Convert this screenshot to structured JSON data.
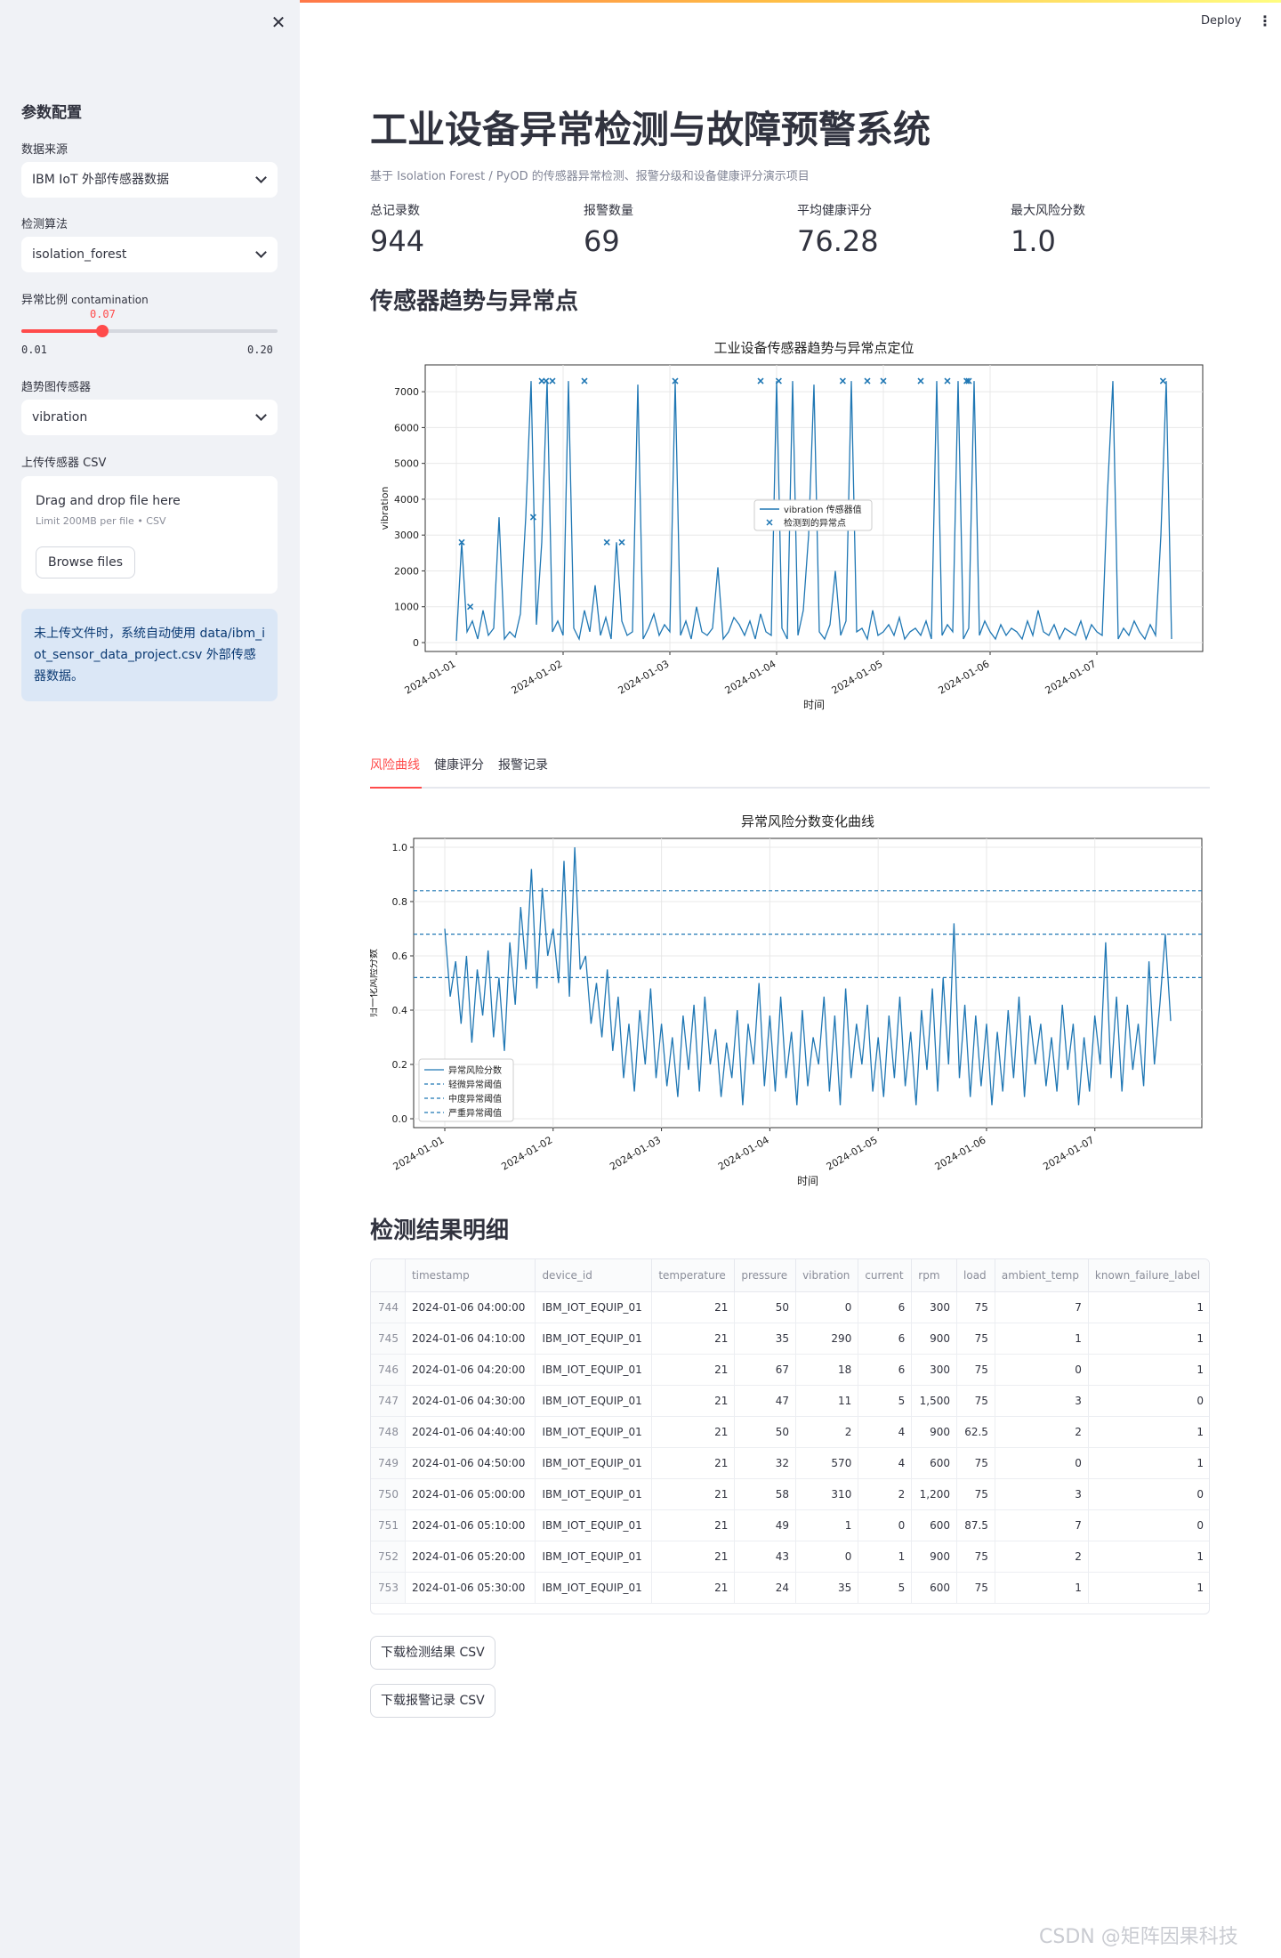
{
  "app": {
    "deploy_label": "Deploy"
  },
  "sidebar": {
    "title": "参数配置",
    "data_source": {
      "label": "数据来源",
      "value": "IBM IoT 外部传感器数据"
    },
    "algorithm": {
      "label": "检测算法",
      "value": "isolation_forest"
    },
    "contamination": {
      "label": "异常比例",
      "label_suffix": "contamination",
      "value": 0.07,
      "value_text": "0.07",
      "min": "0.01",
      "max": "0.20"
    },
    "trend_sensor": {
      "label": "趋势图传感器",
      "value": "vibration"
    },
    "upload": {
      "label": "上传传感器 CSV",
      "drop_text": "Drag and drop file here",
      "limit_text": "Limit 200MB per file • CSV",
      "browse_label": "Browse files"
    },
    "info": "未上传文件时，系统自动使用 data/ibm_iot_sensor_data_project.csv 外部传感器数据。"
  },
  "header": {
    "title": "工业设备异常检测与故障预警系统",
    "subtitle": "基于 Isolation Forest / PyOD 的传感器异常检测、报警分级和设备健康评分演示项目"
  },
  "metrics": [
    {
      "label": "总记录数",
      "value": "944"
    },
    {
      "label": "报警数量",
      "value": "69"
    },
    {
      "label": "平均健康评分",
      "value": "76.28"
    },
    {
      "label": "最大风险分数",
      "value": "1.0"
    }
  ],
  "sections": {
    "trend": "传感器趋势与异常点",
    "details": "检测结果明细"
  },
  "tabs": [
    {
      "label": "风险曲线",
      "active": true
    },
    {
      "label": "健康评分",
      "active": false
    },
    {
      "label": "报警记录",
      "active": false
    }
  ],
  "chart_data": [
    {
      "type": "line",
      "title": "工业设备传感器趋势与异常点定位",
      "xlabel": "时间",
      "ylabel": "vibration",
      "x_ticks": [
        "2024-01-01",
        "2024-01-02",
        "2024-01-03",
        "2024-01-04",
        "2024-01-05",
        "2024-01-06",
        "2024-01-07"
      ],
      "ylim": [
        0,
        7500
      ],
      "y_ticks": [
        "0",
        "1000",
        "2000",
        "3000",
        "4000",
        "5000",
        "6000",
        "7000"
      ],
      "legend": [
        "vibration 传感器值",
        "检测到的异常点"
      ],
      "legend_position": "center",
      "series": [
        {
          "name": "vibration 传感器值",
          "kind": "line",
          "color": "#1f77b4",
          "x": [
            0.0,
            0.05,
            0.1,
            0.15,
            0.2,
            0.25,
            0.3,
            0.35,
            0.4,
            0.45,
            0.5,
            0.55,
            0.6,
            0.65,
            0.7,
            0.75,
            0.8,
            0.85,
            0.9,
            0.95,
            1.0,
            1.05,
            1.1,
            1.15,
            1.2,
            1.25,
            1.3,
            1.35,
            1.4,
            1.45,
            1.5,
            1.55,
            1.6,
            1.65,
            1.7,
            1.75,
            1.8,
            1.85,
            1.9,
            1.95,
            2.0,
            2.05,
            2.1,
            2.15,
            2.2,
            2.25,
            2.3,
            2.35,
            2.4,
            2.45,
            2.5,
            2.55,
            2.6,
            2.65,
            2.7,
            2.75,
            2.8,
            2.85,
            2.9,
            2.95,
            3.0,
            3.05,
            3.1,
            3.15,
            3.2,
            3.25,
            3.3,
            3.35,
            3.4,
            3.45,
            3.5,
            3.55,
            3.6,
            3.65,
            3.7,
            3.75,
            3.8,
            3.85,
            3.9,
            3.95,
            4.0,
            4.05,
            4.1,
            4.15,
            4.2,
            4.25,
            4.3,
            4.35,
            4.4,
            4.45,
            4.5,
            4.55,
            4.6,
            4.65,
            4.7,
            4.75,
            4.8,
            4.85,
            4.9,
            4.95,
            5.0,
            5.05,
            5.1,
            5.15,
            5.2,
            5.25,
            5.3,
            5.35,
            5.4,
            5.45,
            5.5,
            5.55,
            5.6,
            5.65,
            5.7,
            5.75,
            5.8,
            5.85,
            5.9,
            5.95,
            6.0,
            6.05,
            6.1,
            6.15,
            6.2,
            6.25,
            6.3,
            6.35,
            6.4,
            6.45,
            6.5,
            6.55,
            6.6,
            6.65,
            6.7
          ],
          "y": [
            50,
            2800,
            300,
            600,
            100,
            900,
            200,
            400,
            3500,
            100,
            300,
            150,
            800,
            3500,
            7300,
            500,
            2800,
            7300,
            300,
            600,
            200,
            7300,
            400,
            100,
            900,
            300,
            1600,
            200,
            700,
            100,
            2800,
            600,
            200,
            300,
            7200,
            100,
            400,
            800,
            200,
            500,
            300,
            7300,
            200,
            600,
            100,
            1000,
            300,
            200,
            400,
            2100,
            100,
            300,
            700,
            500,
            200,
            600,
            100,
            800,
            300,
            200,
            7300,
            400,
            100,
            7300,
            200,
            900,
            3000,
            7200,
            300,
            100,
            500,
            2000,
            200,
            600,
            7300,
            300,
            400,
            100,
            900,
            200,
            300,
            500,
            200,
            700,
            100,
            300,
            400,
            200,
            600,
            100,
            7300,
            200,
            500,
            300,
            7300,
            100,
            400,
            7300,
            200,
            600,
            300,
            100,
            500,
            200,
            400,
            300,
            100,
            600,
            200,
            900,
            300,
            200,
            500,
            100,
            400,
            300,
            200,
            600,
            100,
            500,
            300,
            200,
            4200,
            7300,
            100,
            400,
            200,
            600,
            300,
            100,
            500,
            200,
            3000,
            7300,
            100
          ]
        },
        {
          "name": "检测到的异常点",
          "kind": "scatter",
          "marker": "x",
          "color": "#1f77b4",
          "x": [
            0.05,
            0.13,
            0.72,
            0.8,
            0.84,
            0.9,
            1.2,
            1.41,
            1.55,
            2.05,
            2.85,
            3.02,
            3.62,
            3.85,
            4.0,
            4.35,
            4.6,
            4.78,
            4.8,
            6.62
          ],
          "y": [
            2800,
            1000,
            3500,
            7300,
            7300,
            7300,
            7300,
            2800,
            2800,
            7300,
            7300,
            7300,
            7300,
            7300,
            7300,
            7300,
            7300,
            7300,
            7300,
            7300
          ]
        }
      ]
    },
    {
      "type": "line",
      "title": "异常风险分数变化曲线",
      "xlabel": "时间",
      "ylabel": "归一化风险分数",
      "x_ticks": [
        "2024-01-01",
        "2024-01-02",
        "2024-01-03",
        "2024-01-04",
        "2024-01-05",
        "2024-01-06",
        "2024-01-07"
      ],
      "ylim": [
        0.0,
        1.0
      ],
      "y_ticks": [
        "0.0",
        "0.2",
        "0.4",
        "0.6",
        "0.8",
        "1.0"
      ],
      "legend": [
        "异常风险分数",
        "轻微异常阈值",
        "中度异常阈值",
        "严重异常阈值"
      ],
      "legend_position": "lower-left",
      "thresholds": [
        {
          "name": "轻微异常阈值",
          "value": 0.52
        },
        {
          "name": "中度异常阈值",
          "value": 0.68
        },
        {
          "name": "严重异常阈值",
          "value": 0.84
        }
      ],
      "series": [
        {
          "name": "异常风险分数",
          "kind": "line",
          "color": "#1f77b4",
          "x": [
            0.0,
            0.05,
            0.1,
            0.15,
            0.2,
            0.25,
            0.3,
            0.35,
            0.4,
            0.45,
            0.5,
            0.55,
            0.6,
            0.65,
            0.7,
            0.75,
            0.8,
            0.85,
            0.9,
            0.95,
            1.0,
            1.05,
            1.1,
            1.15,
            1.2,
            1.25,
            1.3,
            1.35,
            1.4,
            1.45,
            1.5,
            1.55,
            1.6,
            1.65,
            1.7,
            1.75,
            1.8,
            1.85,
            1.9,
            1.95,
            2.0,
            2.05,
            2.1,
            2.15,
            2.2,
            2.25,
            2.3,
            2.35,
            2.4,
            2.45,
            2.5,
            2.55,
            2.6,
            2.65,
            2.7,
            2.75,
            2.8,
            2.85,
            2.9,
            2.95,
            3.0,
            3.05,
            3.1,
            3.15,
            3.2,
            3.25,
            3.3,
            3.35,
            3.4,
            3.45,
            3.5,
            3.55,
            3.6,
            3.65,
            3.7,
            3.75,
            3.8,
            3.85,
            3.9,
            3.95,
            4.0,
            4.05,
            4.1,
            4.15,
            4.2,
            4.25,
            4.3,
            4.35,
            4.4,
            4.45,
            4.5,
            4.55,
            4.6,
            4.65,
            4.7,
            4.75,
            4.8,
            4.85,
            4.9,
            4.95,
            5.0,
            5.05,
            5.1,
            5.15,
            5.2,
            5.25,
            5.3,
            5.35,
            5.4,
            5.45,
            5.5,
            5.55,
            5.6,
            5.65,
            5.7,
            5.75,
            5.8,
            5.85,
            5.9,
            5.95,
            6.0,
            6.05,
            6.1,
            6.15,
            6.2,
            6.25,
            6.3,
            6.35,
            6.4,
            6.45,
            6.5,
            6.55,
            6.6,
            6.65,
            6.7
          ],
          "y": [
            0.7,
            0.45,
            0.58,
            0.35,
            0.6,
            0.28,
            0.55,
            0.38,
            0.62,
            0.3,
            0.52,
            0.25,
            0.65,
            0.42,
            0.78,
            0.55,
            0.92,
            0.48,
            0.85,
            0.6,
            0.7,
            0.5,
            0.95,
            0.45,
            1.0,
            0.55,
            0.6,
            0.35,
            0.5,
            0.3,
            0.55,
            0.25,
            0.45,
            0.15,
            0.35,
            0.1,
            0.4,
            0.2,
            0.48,
            0.15,
            0.35,
            0.12,
            0.3,
            0.08,
            0.38,
            0.18,
            0.42,
            0.1,
            0.45,
            0.2,
            0.33,
            0.08,
            0.28,
            0.15,
            0.4,
            0.05,
            0.35,
            0.2,
            0.5,
            0.12,
            0.38,
            0.1,
            0.45,
            0.15,
            0.32,
            0.05,
            0.4,
            0.12,
            0.3,
            0.2,
            0.45,
            0.1,
            0.38,
            0.05,
            0.48,
            0.15,
            0.35,
            0.2,
            0.42,
            0.1,
            0.3,
            0.08,
            0.38,
            0.15,
            0.45,
            0.12,
            0.32,
            0.05,
            0.4,
            0.18,
            0.48,
            0.1,
            0.52,
            0.2,
            0.72,
            0.15,
            0.42,
            0.08,
            0.38,
            0.12,
            0.35,
            0.05,
            0.32,
            0.1,
            0.4,
            0.15,
            0.45,
            0.08,
            0.38,
            0.2,
            0.35,
            0.12,
            0.3,
            0.1,
            0.42,
            0.18,
            0.35,
            0.05,
            0.3,
            0.1,
            0.38,
            0.2,
            0.65,
            0.15,
            0.45,
            0.1,
            0.42,
            0.18,
            0.35,
            0.12,
            0.58,
            0.2,
            0.42,
            0.68,
            0.36
          ]
        }
      ]
    }
  ],
  "table": {
    "columns": [
      "",
      "timestamp",
      "device_id",
      "temperature",
      "pressure",
      "vibration",
      "current",
      "rpm",
      "load",
      "ambient_temp",
      "known_failure_label"
    ],
    "rows": [
      [
        "744",
        "2024-01-06 04:00:00",
        "IBM_IOT_EQUIP_01",
        "21",
        "50",
        "0",
        "6",
        "300",
        "75",
        "7",
        "1"
      ],
      [
        "745",
        "2024-01-06 04:10:00",
        "IBM_IOT_EQUIP_01",
        "21",
        "35",
        "290",
        "6",
        "900",
        "75",
        "1",
        "1"
      ],
      [
        "746",
        "2024-01-06 04:20:00",
        "IBM_IOT_EQUIP_01",
        "21",
        "67",
        "18",
        "6",
        "300",
        "75",
        "0",
        "1"
      ],
      [
        "747",
        "2024-01-06 04:30:00",
        "IBM_IOT_EQUIP_01",
        "21",
        "47",
        "11",
        "5",
        "1,500",
        "75",
        "3",
        "0"
      ],
      [
        "748",
        "2024-01-06 04:40:00",
        "IBM_IOT_EQUIP_01",
        "21",
        "50",
        "2",
        "4",
        "900",
        "62.5",
        "2",
        "1"
      ],
      [
        "749",
        "2024-01-06 04:50:00",
        "IBM_IOT_EQUIP_01",
        "21",
        "32",
        "570",
        "4",
        "600",
        "75",
        "0",
        "1"
      ],
      [
        "750",
        "2024-01-06 05:00:00",
        "IBM_IOT_EQUIP_01",
        "21",
        "58",
        "310",
        "2",
        "1,200",
        "75",
        "3",
        "0"
      ],
      [
        "751",
        "2024-01-06 05:10:00",
        "IBM_IOT_EQUIP_01",
        "21",
        "49",
        "1",
        "0",
        "600",
        "87.5",
        "7",
        "0"
      ],
      [
        "752",
        "2024-01-06 05:20:00",
        "IBM_IOT_EQUIP_01",
        "21",
        "43",
        "0",
        "1",
        "900",
        "75",
        "2",
        "1"
      ],
      [
        "753",
        "2024-01-06 05:30:00",
        "IBM_IOT_EQUIP_01",
        "21",
        "24",
        "35",
        "5",
        "600",
        "75",
        "1",
        "1"
      ]
    ]
  },
  "downloads": {
    "results_label": "下载检测结果 CSV",
    "alerts_label": "下载报警记录 CSV"
  },
  "watermark": "CSDN @矩阵因果科技",
  "colors": {
    "accent": "#ff4b4b",
    "series": "#1f77b4",
    "sidebar_bg": "#f0f2f6",
    "info_bg": "#dbe7f6"
  }
}
